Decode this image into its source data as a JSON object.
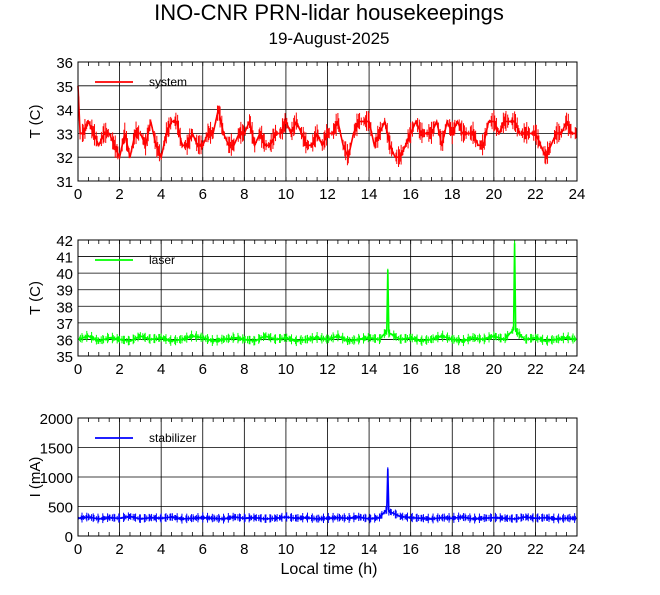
{
  "title": "INO-CNR PRN-lidar housekeepings",
  "subtitle": "19-August-2025",
  "xlabel": "Local time (h)",
  "chart_data": [
    {
      "type": "line",
      "ylabel": "T (C)",
      "xlim": [
        0,
        24
      ],
      "ylim": [
        31,
        36
      ],
      "x_ticks": [
        "0",
        "2",
        "4",
        "6",
        "8",
        "10",
        "12",
        "14",
        "16",
        "18",
        "20",
        "22",
        "24"
      ],
      "y_ticks": [
        "31",
        "32",
        "33",
        "34",
        "35",
        "36"
      ],
      "grid": true,
      "legend_position": "top-left",
      "series": [
        {
          "name": "system",
          "color": "#ff0000",
          "x": [
            0.0,
            0.1,
            0.25,
            0.5,
            0.75,
            1.0,
            1.25,
            1.5,
            1.75,
            2.0,
            2.25,
            2.5,
            2.75,
            3.0,
            3.25,
            3.5,
            3.75,
            4.0,
            4.25,
            4.5,
            4.75,
            5.0,
            5.25,
            5.5,
            5.75,
            6.0,
            6.25,
            6.5,
            6.75,
            7.0,
            7.25,
            7.5,
            7.75,
            8.0,
            8.25,
            8.5,
            8.75,
            9.0,
            9.25,
            9.5,
            9.75,
            10.0,
            10.25,
            10.5,
            10.75,
            11.0,
            11.25,
            11.5,
            11.75,
            12.0,
            12.25,
            12.5,
            12.75,
            13.0,
            13.25,
            13.5,
            13.75,
            14.0,
            14.25,
            14.5,
            14.75,
            15.0,
            15.25,
            15.5,
            15.75,
            16.0,
            16.25,
            16.5,
            16.75,
            17.0,
            17.25,
            17.5,
            17.75,
            18.0,
            18.25,
            18.5,
            18.75,
            19.0,
            19.25,
            19.5,
            19.75,
            20.0,
            20.25,
            20.5,
            20.75,
            21.0,
            21.25,
            21.5,
            21.75,
            22.0,
            22.25,
            22.5,
            22.75,
            23.0,
            23.25,
            23.5,
            23.75,
            24.0
          ],
          "y": [
            35.0,
            33.0,
            33.0,
            33.5,
            33.0,
            32.5,
            33.0,
            33.0,
            32.5,
            32.0,
            33.0,
            32.0,
            33.0,
            33.0,
            32.5,
            33.5,
            32.5,
            32.0,
            33.0,
            33.5,
            33.5,
            32.5,
            32.5,
            33.0,
            32.5,
            32.5,
            33.0,
            33.0,
            34.0,
            33.0,
            32.5,
            32.5,
            33.0,
            33.0,
            33.5,
            32.5,
            33.0,
            32.5,
            32.5,
            33.0,
            33.0,
            33.5,
            33.0,
            33.5,
            33.0,
            32.5,
            32.5,
            33.0,
            32.5,
            33.0,
            33.0,
            33.5,
            32.5,
            32.0,
            33.0,
            33.5,
            33.5,
            33.5,
            32.5,
            33.0,
            33.5,
            32.5,
            32.0,
            32.0,
            32.5,
            33.0,
            33.5,
            33.0,
            33.0,
            33.0,
            33.5,
            32.5,
            33.5,
            33.0,
            33.5,
            33.0,
            33.0,
            33.0,
            32.5,
            32.5,
            33.5,
            33.5,
            33.0,
            33.5,
            33.5,
            33.5,
            33.0,
            33.0,
            33.0,
            33.0,
            32.5,
            32.0,
            32.5,
            33.0,
            33.0,
            33.5,
            33.0,
            33.0
          ]
        }
      ]
    },
    {
      "type": "line",
      "ylabel": "T (C)",
      "xlim": [
        0,
        24
      ],
      "ylim": [
        35,
        42
      ],
      "x_ticks": [
        "0",
        "2",
        "4",
        "6",
        "8",
        "10",
        "12",
        "14",
        "16",
        "18",
        "20",
        "22",
        "24"
      ],
      "y_ticks": [
        "35",
        "36",
        "37",
        "38",
        "39",
        "40",
        "41",
        "42"
      ],
      "grid": true,
      "legend_position": "top-left",
      "series": [
        {
          "name": "laser",
          "color": "#00ff00",
          "x": [
            0.0,
            0.5,
            1.0,
            1.5,
            2.0,
            2.5,
            3.0,
            3.5,
            4.0,
            4.5,
            5.0,
            5.5,
            6.0,
            6.5,
            7.0,
            7.5,
            8.0,
            8.5,
            9.0,
            9.5,
            10.0,
            10.5,
            11.0,
            11.5,
            12.0,
            12.5,
            13.0,
            13.5,
            14.0,
            14.5,
            14.85,
            14.9,
            14.95,
            15.5,
            16.0,
            16.5,
            17.0,
            17.5,
            18.0,
            18.5,
            19.0,
            19.5,
            20.0,
            20.5,
            20.95,
            21.0,
            21.05,
            21.5,
            22.0,
            22.5,
            23.0,
            23.5,
            24.0
          ],
          "y": [
            36.0,
            36.2,
            35.9,
            36.1,
            36.0,
            35.9,
            36.2,
            36.0,
            36.1,
            35.9,
            36.0,
            36.2,
            36.1,
            35.9,
            36.0,
            36.1,
            36.0,
            35.9,
            36.2,
            36.0,
            36.1,
            35.9,
            36.0,
            36.1,
            36.0,
            36.2,
            35.9,
            36.0,
            36.1,
            36.0,
            36.5,
            40.2,
            36.4,
            36.0,
            36.1,
            35.9,
            36.0,
            36.2,
            36.0,
            35.9,
            36.1,
            36.0,
            36.2,
            36.0,
            36.6,
            41.8,
            36.5,
            36.0,
            36.1,
            35.9,
            36.0,
            36.1,
            36.0
          ]
        }
      ]
    },
    {
      "type": "line",
      "ylabel": "I (mA)",
      "xlim": [
        0,
        24
      ],
      "ylim": [
        0,
        2000
      ],
      "x_ticks": [
        "0",
        "2",
        "4",
        "6",
        "8",
        "10",
        "12",
        "14",
        "16",
        "18",
        "20",
        "22",
        "24"
      ],
      "y_ticks": [
        "0",
        "500",
        "1000",
        "1500",
        "2000"
      ],
      "grid": true,
      "legend_position": "top-left",
      "series": [
        {
          "name": "stabilizer",
          "color": "#0000ff",
          "x": [
            0.0,
            0.5,
            1.0,
            1.5,
            2.0,
            2.5,
            3.0,
            3.5,
            4.0,
            4.5,
            5.0,
            5.5,
            6.0,
            6.5,
            7.0,
            7.5,
            8.0,
            8.5,
            9.0,
            9.5,
            10.0,
            10.5,
            11.0,
            11.5,
            12.0,
            12.5,
            13.0,
            13.5,
            14.0,
            14.5,
            14.85,
            14.9,
            14.95,
            15.5,
            16.0,
            16.5,
            17.0,
            17.5,
            18.0,
            18.5,
            19.0,
            19.5,
            20.0,
            20.5,
            21.0,
            21.5,
            22.0,
            22.5,
            23.0,
            23.5,
            24.0
          ],
          "y": [
            300,
            320,
            290,
            310,
            300,
            330,
            290,
            310,
            300,
            320,
            290,
            300,
            310,
            300,
            290,
            320,
            300,
            310,
            290,
            300,
            320,
            300,
            310,
            290,
            300,
            310,
            300,
            320,
            290,
            310,
            450,
            1140,
            420,
            330,
            310,
            300,
            290,
            310,
            300,
            320,
            290,
            300,
            310,
            300,
            290,
            320,
            300,
            310,
            290,
            300,
            300
          ]
        }
      ]
    }
  ]
}
